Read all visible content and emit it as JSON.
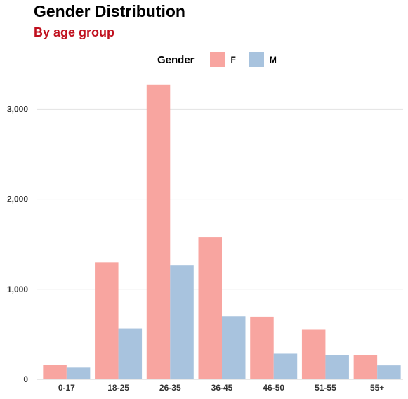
{
  "chart_data": {
    "type": "bar",
    "title": "Gender Distribution",
    "subtitle": "By age group",
    "xlabel": "",
    "ylabel": "",
    "categories": [
      "0-17",
      "18-25",
      "26-35",
      "36-45",
      "46-50",
      "51-55",
      "55+"
    ],
    "series": [
      {
        "name": "F",
        "color": "#f8a5a0",
        "values": [
          160,
          1300,
          3270,
          1575,
          695,
          550,
          270
        ]
      },
      {
        "name": "M",
        "color": "#a8c3de",
        "values": [
          130,
          565,
          1270,
          700,
          285,
          270,
          155
        ]
      }
    ],
    "ylim": [
      0,
      3300
    ],
    "yticks": [
      0,
      1000,
      2000,
      3000
    ],
    "ytick_labels": [
      "0",
      "1,000",
      "2,000",
      "3,000"
    ],
    "grid": true,
    "legend": {
      "title": "Gender",
      "position": "top-center"
    }
  }
}
